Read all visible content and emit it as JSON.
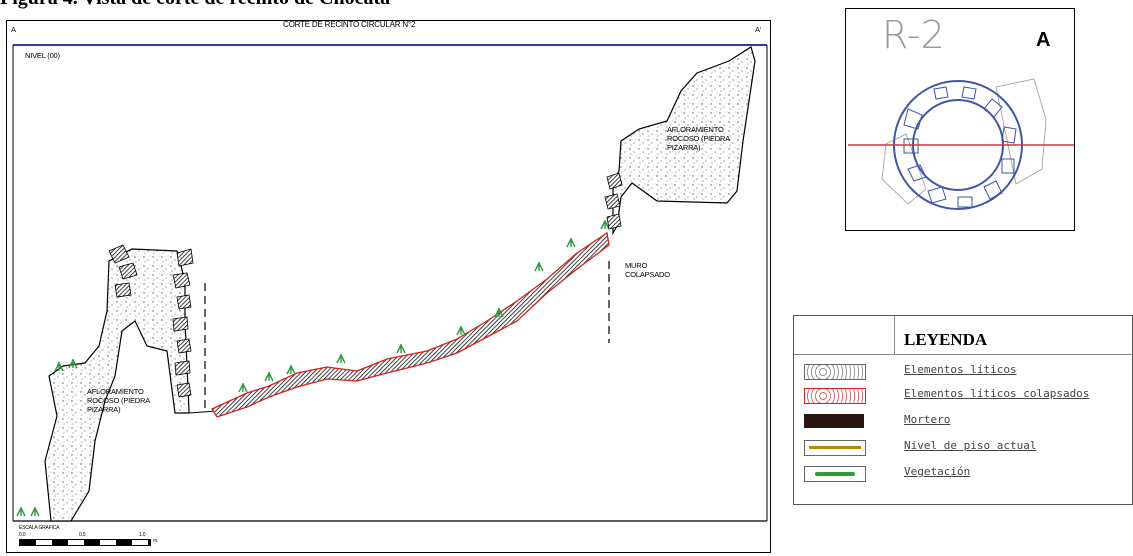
{
  "figure_caption": "Figura 4. Vista de corte de recinto de Chocata",
  "section": {
    "title": "CORTE DE RECINTO CIRCULAR N°2",
    "point_a": "A",
    "point_a_prime": "A'",
    "level": "NIVEL (00)",
    "outcrop_left": [
      "AFLORAMIENTO",
      "ROCOSO (PIEDRA",
      "PIZARRA)"
    ],
    "outcrop_right": [
      "AFLORAMIENTO",
      "ROCOSO (PIEDRA",
      "PIZARRA)"
    ],
    "collapsed_wall": [
      "MURO",
      "COLAPSADO"
    ],
    "scale_label": "ESCALA GRAFICA",
    "scale_ticks": [
      "0.0",
      "0.5",
      "1.0"
    ],
    "scale_unit": "m."
  },
  "plan": {
    "label": "R-2",
    "north": "A"
  },
  "legend": {
    "title": "LEYENDA",
    "items": [
      {
        "label": "Elementos líticos",
        "swatch": "stones"
      },
      {
        "label": "Elementos líticos colapsados",
        "swatch": "collapsed"
      },
      {
        "label": "Mortero",
        "swatch": "mortar"
      },
      {
        "label": "Nivel de piso actual",
        "swatch": "floor"
      },
      {
        "label": "Vegetación",
        "swatch": "vegetation"
      }
    ]
  },
  "colors": {
    "frame_top_line": "#2f3d9a",
    "collapsed_red": "#d81e1e",
    "vegetation_green": "#2e9a3a",
    "plan_blue": "#3f55a8",
    "plan_axis_red": "#c83a3a",
    "mortar": "#2a1410",
    "floor_line": "#b8860b"
  }
}
